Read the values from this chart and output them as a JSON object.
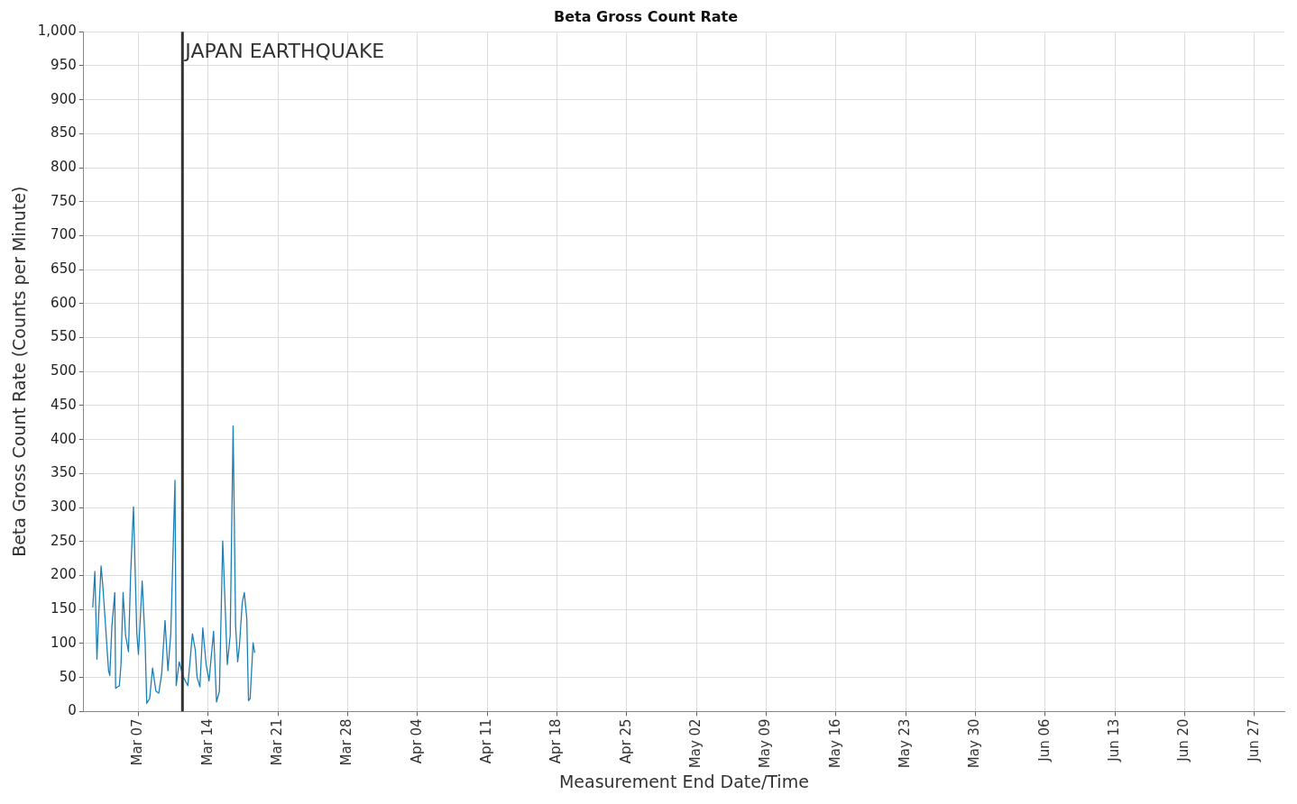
{
  "chart_data": {
    "type": "line",
    "title": "Beta Gross Count Rate",
    "xlabel": "Measurement End Date/Time",
    "ylabel": "Beta Gross Count Rate (Counts per Minute)",
    "x": [
      "--03-02T10:00",
      "--03-02T15:00",
      "--03-02T20:00",
      "--03-03T00:00",
      "--03-03T06:00",
      "--03-03T10:00",
      "--03-03T15:00",
      "--03-04T00:00",
      "--03-04T03:00",
      "--03-04T08:00",
      "--03-04T15:00",
      "--03-04T17:00",
      "--03-05T02:00",
      "--03-05T06:00",
      "--03-05T11:00",
      "--03-05T17:00",
      "--03-06T00:00",
      "--03-06T05:00",
      "--03-06T12:00",
      "--03-06T20:00",
      "--03-07T00:00",
      "--03-07T09:00",
      "--03-07T16:00",
      "--03-07T20:00",
      "--03-08T03:00",
      "--03-08T10:00",
      "--03-08T18:00",
      "--03-09T01:00",
      "--03-09T08:00",
      "--03-09T16:00",
      "--03-09T23:00",
      "--03-10T06:00",
      "--03-10T16:00",
      "--03-10T19:00",
      "--03-11T02:00",
      "--03-11T12:00",
      "--03-11T23:00",
      "--03-12T10:00",
      "--03-12T17:00",
      "--03-12T21:00",
      "--03-13T04:00",
      "--03-13T11:00",
      "--03-13T19:00",
      "--03-14T02:00",
      "--03-14T13:00",
      "--03-14T20:00",
      "--03-15T03:00",
      "--03-15T11:00",
      "--03-15T22:00",
      "--03-16T05:00",
      "--03-16T12:00",
      "--03-16T18:00",
      "--03-16T23:00",
      "--03-17T03:00",
      "--03-17T10:00",
      "--03-17T15:00",
      "--03-17T21:00",
      "--03-18T01:00",
      "--03-18T05:00",
      "--03-18T12:00",
      "--03-18T16:00"
    ],
    "series": [
      {
        "color": "#1f7fb4",
        "values": [
          153,
          206,
          77,
          138,
          214,
          186,
          142,
          60,
          53,
          125,
          175,
          34,
          38,
          69,
          175,
          112,
          88,
          199,
          301,
          116,
          84,
          192,
          103,
          12,
          19,
          64,
          30,
          27,
          56,
          134,
          60,
          116,
          340,
          38,
          73,
          51,
          38,
          114,
          90,
          51,
          36,
          123,
          69,
          45,
          118,
          14,
          30,
          251,
          69,
          112,
          420,
          125,
          73,
          95,
          160,
          175,
          136,
          16,
          19,
          101,
          86
        ]
      }
    ],
    "xlim": [
      "--03-01T12:00",
      "--06-30T00:00"
    ],
    "xticks": [
      {
        "value": "--03-07",
        "label": "Mar 07"
      },
      {
        "value": "--03-14",
        "label": "Mar 14"
      },
      {
        "value": "--03-21",
        "label": "Mar 21"
      },
      {
        "value": "--03-28",
        "label": "Mar 28"
      },
      {
        "value": "--04-04",
        "label": "Apr 04"
      },
      {
        "value": "--04-11",
        "label": "Apr 11"
      },
      {
        "value": "--04-18",
        "label": "Apr 18"
      },
      {
        "value": "--04-25",
        "label": "Apr 25"
      },
      {
        "value": "--05-02",
        "label": "May 02"
      },
      {
        "value": "--05-09",
        "label": "May 09"
      },
      {
        "value": "--05-16",
        "label": "May 16"
      },
      {
        "value": "--05-23",
        "label": "May 23"
      },
      {
        "value": "--05-30",
        "label": "May 30"
      },
      {
        "value": "--06-06",
        "label": "Jun 06"
      },
      {
        "value": "--06-13",
        "label": "Jun 13"
      },
      {
        "value": "--06-20",
        "label": "Jun 20"
      },
      {
        "value": "--06-27",
        "label": "Jun 27"
      }
    ],
    "ylim": [
      0,
      1000
    ],
    "yticks": [
      0,
      50,
      100,
      150,
      200,
      250,
      300,
      350,
      400,
      450,
      500,
      550,
      600,
      650,
      700,
      750,
      800,
      850,
      900,
      950,
      {
        "value": 1000,
        "label": "1,000"
      }
    ],
    "ref_lines": [
      {
        "axis": "x",
        "value": "--03-11T10:00",
        "label": "JAPAN EARTHQUAKE",
        "color": "#333333"
      }
    ],
    "grid": true,
    "legend": false,
    "marker": "none",
    "line_style": "solid"
  }
}
